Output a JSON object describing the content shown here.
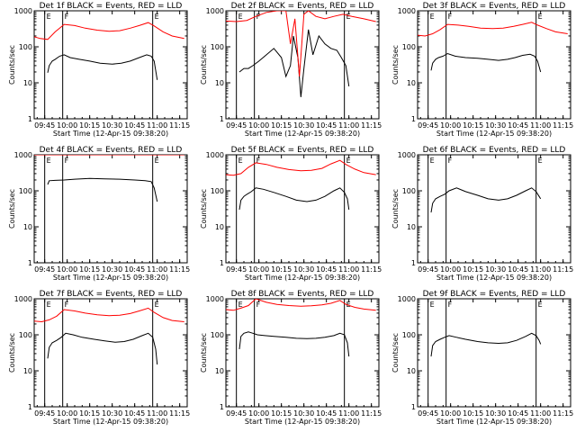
{
  "figure": {
    "background": "#ffffff",
    "axis_color": "#000000",
    "events_color": "#000000",
    "lld_color": "#ff0000",
    "start_time_label": "Start Time (12-Apr-15 09:38:20)"
  },
  "chart_data": [
    {
      "type": "line",
      "title": "Det 1f BLACK = Events, RED = LLD",
      "ylabel": "Counts/sec",
      "xlabel": "Start Time (12-Apr-15 09:38:20)",
      "yscale": "log",
      "ylim": [
        1,
        1000
      ],
      "yticks": [
        "1",
        "10",
        "100",
        "1000"
      ],
      "xticks": [
        "09:45",
        "10:00",
        "10:15",
        "10:30",
        "10:45",
        "11:00",
        "11:15"
      ],
      "xlim": [
        "09:38",
        "11:20"
      ],
      "markers": [
        {
          "label": "E",
          "time": "09:45"
        },
        {
          "label": "F",
          "time": "09:57"
        },
        {
          "label": "E",
          "time": "10:57"
        }
      ],
      "series": [
        {
          "name": "Events",
          "color": "#000000",
          "x": [
            "09:47",
            "09:48",
            "09:50",
            "09:52",
            "09:55",
            "09:58",
            "10:02",
            "10:08",
            "10:15",
            "10:22",
            "10:30",
            "10:36",
            "10:42",
            "10:48",
            "10:53",
            "10:56",
            "10:58",
            "11:00"
          ],
          "y": [
            19,
            30,
            40,
            45,
            55,
            60,
            50,
            45,
            40,
            35,
            33,
            35,
            40,
            50,
            60,
            55,
            40,
            12
          ]
        },
        {
          "name": "LLD",
          "color": "#ff0000",
          "x": [
            "09:38",
            "09:42",
            "09:47",
            "09:52",
            "09:58",
            "10:05",
            "10:12",
            "10:20",
            "10:28",
            "10:35",
            "10:42",
            "10:48",
            "10:54",
            "10:58",
            "11:04",
            "11:10",
            "11:18"
          ],
          "y": [
            190,
            170,
            160,
            260,
            420,
            390,
            330,
            290,
            270,
            280,
            330,
            390,
            470,
            380,
            260,
            200,
            170
          ]
        }
      ]
    },
    {
      "type": "line",
      "title": "Det 2f BLACK = Events, RED = LLD",
      "ylabel": "Counts/sec",
      "xlabel": "Start Time (12-Apr-15 09:38:20)",
      "yscale": "log",
      "ylim": [
        1,
        1000
      ],
      "yticks": [
        "1",
        "10",
        "100",
        "1000"
      ],
      "xticks": [
        "09:45",
        "10:00",
        "10:15",
        "10:30",
        "10:45",
        "11:00",
        "11:15"
      ],
      "xlim": [
        "09:38",
        "11:20"
      ],
      "markers": [
        {
          "label": "E",
          "time": "09:45"
        },
        {
          "label": "F",
          "time": "09:57"
        },
        {
          "label": "E",
          "time": "10:57"
        }
      ],
      "series": [
        {
          "name": "Events",
          "color": "#000000",
          "x": [
            "09:47",
            "09:50",
            "09:53",
            "09:56",
            "10:00",
            "10:05",
            "10:10",
            "10:15",
            "10:18",
            "10:21",
            "10:23",
            "10:26",
            "10:28",
            "10:30",
            "10:33",
            "10:36",
            "10:40",
            "10:44",
            "10:48",
            "10:52",
            "10:55",
            "10:58",
            "11:00"
          ],
          "y": [
            20,
            25,
            25,
            30,
            40,
            60,
            90,
            50,
            15,
            30,
            200,
            50,
            4,
            25,
            300,
            60,
            200,
            120,
            90,
            80,
            50,
            30,
            8
          ]
        },
        {
          "name": "LLD",
          "color": "#ff0000",
          "x": [
            "09:38",
            "09:45",
            "09:52",
            "09:58",
            "10:05",
            "10:12",
            "10:18",
            "10:21",
            "10:24",
            "10:27",
            "10:30",
            "10:33",
            "10:38",
            "10:44",
            "10:50",
            "10:56",
            "11:02",
            "11:10",
            "11:18"
          ],
          "y": [
            520,
            500,
            540,
            700,
            900,
            1000,
            1000,
            120,
            600,
            15,
            800,
            1000,
            700,
            600,
            700,
            800,
            700,
            600,
            500
          ]
        }
      ]
    },
    {
      "type": "line",
      "title": "Det 3f BLACK = Events, RED = LLD",
      "ylabel": "Counts/sec",
      "xlabel": "Start Time (12-Apr-15 09:38:20)",
      "yscale": "log",
      "ylim": [
        1,
        1000
      ],
      "yticks": [
        "1",
        "10",
        "100",
        "1000"
      ],
      "xticks": [
        "09:45",
        "10:00",
        "10:15",
        "10:30",
        "10:45",
        "11:00",
        "11:15"
      ],
      "xlim": [
        "09:38",
        "11:20"
      ],
      "markers": [
        {
          "label": "E",
          "time": "09:45"
        },
        {
          "label": "F",
          "time": "09:57"
        },
        {
          "label": "E",
          "time": "10:57"
        }
      ],
      "series": [
        {
          "name": "Events",
          "color": "#000000",
          "x": [
            "09:47",
            "09:48",
            "09:50",
            "09:52",
            "09:55",
            "09:58",
            "10:03",
            "10:10",
            "10:18",
            "10:25",
            "10:32",
            "10:38",
            "10:43",
            "10:48",
            "10:53",
            "10:56",
            "10:58",
            "11:00"
          ],
          "y": [
            22,
            35,
            45,
            50,
            55,
            65,
            55,
            50,
            48,
            45,
            42,
            45,
            50,
            58,
            62,
            55,
            40,
            20
          ]
        },
        {
          "name": "LLD",
          "color": "#ff0000",
          "x": [
            "09:38",
            "09:43",
            "09:48",
            "09:53",
            "09:58",
            "10:05",
            "10:12",
            "10:20",
            "10:28",
            "10:35",
            "10:42",
            "10:48",
            "10:54",
            "10:58",
            "11:04",
            "11:10",
            "11:18"
          ],
          "y": [
            210,
            200,
            230,
            300,
            420,
            400,
            370,
            330,
            320,
            330,
            370,
            420,
            480,
            400,
            320,
            260,
            230
          ]
        }
      ]
    },
    {
      "type": "line",
      "title": "Det 4f BLACK = Events, RED = LLD",
      "ylabel": "Counts/sec",
      "xlabel": "Start Time (12-Apr-15 09:38:20)",
      "yscale": "log",
      "ylim": [
        1,
        1000
      ],
      "yticks": [
        "1",
        "10",
        "100",
        "1000"
      ],
      "xticks": [
        "09:45",
        "10:00",
        "10:15",
        "10:30",
        "10:45",
        "11:00",
        "11:15"
      ],
      "xlim": [
        "09:38",
        "11:20"
      ],
      "markers": [
        {
          "label": "E",
          "time": "09:45"
        },
        {
          "label": "F",
          "time": "09:57"
        },
        {
          "label": "E",
          "time": "10:57"
        }
      ],
      "series": [
        {
          "name": "Events",
          "color": "#000000",
          "x": [
            "09:47",
            "09:48",
            "09:52",
            "09:58",
            "10:05",
            "10:15",
            "10:25",
            "10:35",
            "10:45",
            "10:52",
            "10:56",
            "10:58",
            "11:00"
          ],
          "y": [
            150,
            190,
            195,
            200,
            210,
            220,
            215,
            210,
            200,
            190,
            180,
            120,
            50
          ]
        },
        {
          "name": "LLD",
          "color": "#ff0000",
          "x": [
            "09:38",
            "09:45",
            "09:52",
            "10:00",
            "10:10",
            "10:20",
            "10:30",
            "10:40",
            "10:50",
            "11:00",
            "11:10",
            "11:18"
          ],
          "y": [
            1000,
            1000,
            1000,
            1000,
            1000,
            1000,
            1000,
            1000,
            1000,
            1000,
            1000,
            1000
          ]
        }
      ]
    },
    {
      "type": "line",
      "title": "Det 5f BLACK = Events, RED = LLD",
      "ylabel": "Counts/sec",
      "xlabel": "Start Time (12-Apr-15 09:38:20)",
      "yscale": "log",
      "ylim": [
        1,
        1000
      ],
      "yticks": [
        "1",
        "10",
        "100",
        "1000"
      ],
      "xticks": [
        "09:45",
        "10:00",
        "10:15",
        "10:30",
        "10:45",
        "11:00",
        "11:15"
      ],
      "xlim": [
        "09:38",
        "11:20"
      ],
      "markers": [
        {
          "label": "E",
          "time": "09:45"
        },
        {
          "label": "F",
          "time": "09:57"
        },
        {
          "label": "E",
          "time": "10:57"
        }
      ],
      "series": [
        {
          "name": "Events",
          "color": "#000000",
          "x": [
            "09:47",
            "09:48",
            "09:50",
            "09:52",
            "09:55",
            "09:58",
            "10:03",
            "10:10",
            "10:18",
            "10:25",
            "10:32",
            "10:38",
            "10:44",
            "10:50",
            "10:54",
            "10:57",
            "10:59",
            "11:00"
          ],
          "y": [
            30,
            55,
            70,
            80,
            95,
            120,
            110,
            90,
            70,
            55,
            50,
            55,
            70,
            100,
            120,
            90,
            60,
            30
          ]
        },
        {
          "name": "LLD",
          "color": "#ff0000",
          "x": [
            "09:38",
            "09:43",
            "09:48",
            "09:53",
            "09:58",
            "10:05",
            "10:12",
            "10:20",
            "10:28",
            "10:35",
            "10:42",
            "10:48",
            "10:54",
            "10:58",
            "11:04",
            "11:10",
            "11:18"
          ],
          "y": [
            280,
            270,
            300,
            450,
            600,
            540,
            450,
            390,
            360,
            370,
            420,
            560,
            700,
            540,
            400,
            320,
            280
          ]
        }
      ]
    },
    {
      "type": "line",
      "title": "Det 6f BLACK = Events, RED = LLD",
      "ylabel": "Counts/sec",
      "xlabel": "Start Time (12-Apr-15 09:38:20)",
      "yscale": "log",
      "ylim": [
        1,
        1000
      ],
      "yticks": [
        "1",
        "10",
        "100",
        "1000"
      ],
      "xticks": [
        "09:45",
        "10:00",
        "10:15",
        "10:30",
        "10:45",
        "11:00",
        "11:15"
      ],
      "xlim": [
        "09:38",
        "11:20"
      ],
      "markers": [
        {
          "label": "E",
          "time": "09:45"
        },
        {
          "label": "F",
          "time": "09:57"
        },
        {
          "label": "E",
          "time": "10:57"
        }
      ],
      "series": [
        {
          "name": "Events",
          "color": "#000000",
          "x": [
            "09:47",
            "09:48",
            "09:50",
            "09:53",
            "09:56",
            "09:59",
            "10:04",
            "10:10",
            "10:18",
            "10:25",
            "10:32",
            "10:38",
            "10:44",
            "10:50",
            "10:54",
            "10:57",
            "10:59",
            "11:00"
          ],
          "y": [
            25,
            45,
            60,
            70,
            80,
            100,
            120,
            95,
            75,
            60,
            55,
            60,
            75,
            100,
            120,
            95,
            70,
            60
          ]
        }
      ]
    },
    {
      "type": "line",
      "title": "Det 7f BLACK = Events, RED = LLD",
      "ylabel": "Counts/sec",
      "xlabel": "Start Time (12-Apr-15 09:38:20)",
      "yscale": "log",
      "ylim": [
        1,
        1000
      ],
      "yticks": [
        "1",
        "10",
        "100",
        "1000"
      ],
      "xticks": [
        "09:45",
        "10:00",
        "10:15",
        "10:30",
        "10:45",
        "11:00",
        "11:15"
      ],
      "xlim": [
        "09:38",
        "11:20"
      ],
      "markers": [
        {
          "label": "E",
          "time": "09:45"
        },
        {
          "label": "F",
          "time": "09:57"
        },
        {
          "label": "E",
          "time": "10:57"
        }
      ],
      "series": [
        {
          "name": "Events",
          "color": "#000000",
          "x": [
            "09:47",
            "09:48",
            "09:50",
            "09:53",
            "09:56",
            "09:59",
            "10:04",
            "10:10",
            "10:18",
            "10:25",
            "10:32",
            "10:38",
            "10:44",
            "10:50",
            "10:54",
            "10:57",
            "10:59",
            "11:00"
          ],
          "y": [
            22,
            45,
            60,
            70,
            85,
            110,
            100,
            85,
            75,
            68,
            62,
            65,
            75,
            95,
            110,
            85,
            40,
            15
          ]
        },
        {
          "name": "LLD",
          "color": "#ff0000",
          "x": [
            "09:38",
            "09:43",
            "09:48",
            "09:53",
            "09:58",
            "10:05",
            "10:12",
            "10:20",
            "10:28",
            "10:35",
            "10:42",
            "10:48",
            "10:54",
            "10:58",
            "11:04",
            "11:10",
            "11:18"
          ],
          "y": [
            240,
            230,
            260,
            330,
            500,
            460,
            400,
            360,
            340,
            350,
            390,
            460,
            550,
            420,
            300,
            250,
            230
          ]
        }
      ]
    },
    {
      "type": "line",
      "title": "Det 8f BLACK = Events, RED = LLD",
      "ylabel": "Counts/sec",
      "xlabel": "Start Time (12-Apr-15 09:38:20)",
      "yscale": "log",
      "ylim": [
        1,
        1000
      ],
      "yticks": [
        "1",
        "10",
        "100",
        "1000"
      ],
      "xticks": [
        "09:45",
        "10:00",
        "10:15",
        "10:30",
        "10:45",
        "11:00",
        "11:15"
      ],
      "xlim": [
        "09:38",
        "11:20"
      ],
      "markers": [
        {
          "label": "E",
          "time": "09:45"
        },
        {
          "label": "F",
          "time": "09:57"
        },
        {
          "label": "E",
          "time": "10:57"
        }
      ],
      "series": [
        {
          "name": "Events",
          "color": "#000000",
          "x": [
            "09:47",
            "09:48",
            "09:50",
            "09:53",
            "09:56",
            "09:59",
            "10:04",
            "10:10",
            "10:18",
            "10:25",
            "10:32",
            "10:38",
            "10:44",
            "10:50",
            "10:54",
            "10:57",
            "10:59",
            "11:00"
          ],
          "y": [
            40,
            90,
            110,
            120,
            110,
            100,
            95,
            90,
            85,
            80,
            78,
            80,
            85,
            95,
            110,
            100,
            60,
            25
          ]
        },
        {
          "name": "LLD",
          "color": "#ff0000",
          "x": [
            "09:38",
            "09:43",
            "09:48",
            "09:53",
            "09:58",
            "10:05",
            "10:12",
            "10:20",
            "10:28",
            "10:35",
            "10:42",
            "10:48",
            "10:54",
            "10:58",
            "11:04",
            "11:10",
            "11:18"
          ],
          "y": [
            500,
            480,
            550,
            650,
            1000,
            800,
            700,
            650,
            620,
            640,
            680,
            750,
            900,
            700,
            580,
            520,
            480
          ]
        }
      ]
    },
    {
      "type": "line",
      "title": "Det 9f BLACK = Events, RED = LLD",
      "ylabel": "Counts/sec",
      "xlabel": "Start Time (12-Apr-15 09:38:20)",
      "yscale": "log",
      "ylim": [
        1,
        1000
      ],
      "yticks": [
        "1",
        "10",
        "100",
        "1000"
      ],
      "xticks": [
        "09:45",
        "10:00",
        "10:15",
        "10:30",
        "10:45",
        "11:00",
        "11:15"
      ],
      "xlim": [
        "09:38",
        "11:20"
      ],
      "markers": [
        {
          "label": "E",
          "time": "09:45"
        },
        {
          "label": "F",
          "time": "09:57"
        },
        {
          "label": "E",
          "time": "10:57"
        }
      ],
      "series": [
        {
          "name": "Events",
          "color": "#000000",
          "x": [
            "09:47",
            "09:48",
            "09:50",
            "09:53",
            "09:56",
            "09:59",
            "10:04",
            "10:10",
            "10:18",
            "10:25",
            "10:32",
            "10:38",
            "10:44",
            "10:50",
            "10:54",
            "10:57",
            "10:59",
            "11:00"
          ],
          "y": [
            25,
            50,
            65,
            75,
            85,
            95,
            85,
            75,
            65,
            60,
            58,
            60,
            70,
            90,
            110,
            95,
            70,
            55
          ]
        }
      ]
    }
  ]
}
